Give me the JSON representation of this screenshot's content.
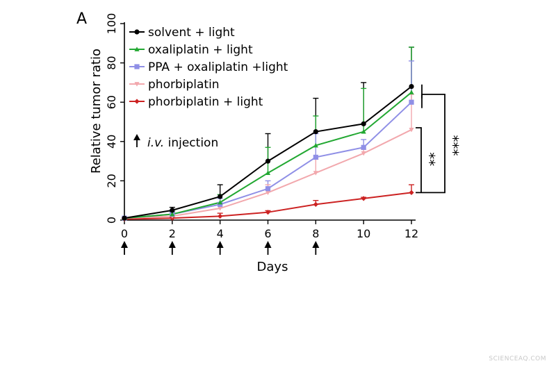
{
  "chart_data": {
    "type": "line",
    "panel_label": "A",
    "title": "",
    "xlabel": "Days",
    "ylabel": "Relative tumor ratio",
    "xlim": [
      0,
      12
    ],
    "ylim": [
      0,
      100
    ],
    "x_ticks": [
      "0",
      "2",
      "4",
      "6",
      "8",
      "10",
      "12"
    ],
    "y_ticks": [
      "0",
      "20",
      "40",
      "60",
      "80",
      "100"
    ],
    "grid": false,
    "legend_position": "top-left",
    "x": [
      0,
      2,
      4,
      6,
      8,
      10,
      12
    ],
    "series": [
      {
        "name": "solvent + light",
        "color": "#000000",
        "marker": "circle",
        "values": [
          1,
          5,
          12,
          30,
          45,
          49,
          68
        ],
        "errors": [
          0.5,
          1.5,
          6,
          14,
          17,
          21,
          20
        ]
      },
      {
        "name": "oxaliplatin + light",
        "color": "#22a832",
        "marker": "triangle-up",
        "values": [
          1,
          3,
          9,
          24,
          38,
          45,
          65
        ],
        "errors": [
          0.5,
          1.2,
          4,
          13,
          15,
          22,
          23
        ]
      },
      {
        "name": "PPA + oxaliplatin +light",
        "color": "#8f8fe6",
        "marker": "square",
        "values": [
          1,
          3,
          8,
          16,
          32,
          37,
          60
        ],
        "errors": [
          0.5,
          1,
          3,
          4,
          12,
          4,
          21
        ]
      },
      {
        "name": "phorbiplatin",
        "color": "#f2a8ad",
        "marker": "triangle-down",
        "values": [
          1,
          2,
          6,
          14,
          24,
          34,
          46
        ],
        "errors": [
          0.5,
          1,
          2,
          4,
          7,
          2,
          18
        ]
      },
      {
        "name": "phorbiplatin + light",
        "color": "#cc2222",
        "marker": "diamond",
        "values": [
          0.5,
          1,
          2,
          4,
          8,
          11,
          14
        ],
        "errors": [
          0.2,
          0.3,
          1.5,
          0.8,
          2,
          0.6,
          4
        ]
      }
    ],
    "annotations": {
      "injection_label_italic": "i.v.",
      "injection_label_rest": " injection",
      "injection_days": [
        0,
        2,
        4,
        6,
        8
      ],
      "significance_inner": "**",
      "significance_outer": "***"
    }
  },
  "watermark": "SCIENCEAQ.COM"
}
